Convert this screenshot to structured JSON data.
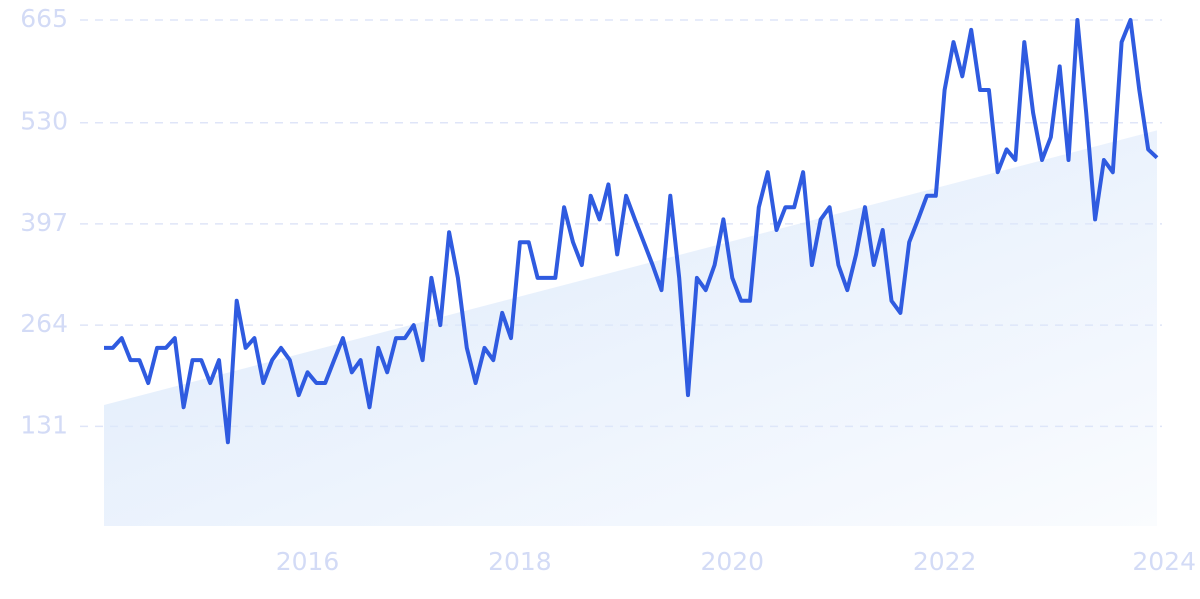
{
  "chart_data": {
    "type": "line",
    "categories": [
      null,
      null,
      null,
      null,
      null,
      null,
      null,
      null,
      null,
      null,
      null,
      null,
      null,
      null,
      null,
      null,
      null,
      null,
      null,
      null,
      null,
      null,
      null,
      "2016",
      null,
      null,
      null,
      null,
      null,
      null,
      null,
      null,
      null,
      null,
      null,
      null,
      null,
      null,
      null,
      null,
      null,
      null,
      null,
      null,
      null,
      null,
      null,
      "2018",
      null,
      null,
      null,
      null,
      null,
      null,
      null,
      null,
      null,
      null,
      null,
      null,
      null,
      null,
      null,
      null,
      null,
      null,
      null,
      null,
      null,
      null,
      null,
      "2020",
      null,
      null,
      null,
      null,
      null,
      null,
      null,
      null,
      null,
      null,
      null,
      null,
      null,
      null,
      null,
      null,
      null,
      null,
      null,
      null,
      null,
      null,
      null,
      "2022",
      null,
      null,
      null,
      null,
      null,
      null,
      null,
      null,
      null,
      null,
      null,
      null,
      null,
      null,
      null,
      null,
      null,
      null,
      null,
      null,
      null,
      null,
      null,
      "2024"
    ],
    "series": [
      {
        "color": "#2f5be0",
        "values": [
          234,
          234,
          247,
          218,
          218,
          188,
          234,
          234,
          247,
          156,
          218,
          218,
          188,
          218,
          110,
          296,
          234,
          247,
          188,
          218,
          234,
          218,
          172,
          202,
          188,
          188,
          218,
          247,
          202,
          218,
          156,
          234,
          202,
          247,
          247,
          264,
          218,
          326,
          264,
          386,
          326,
          234,
          188,
          234,
          218,
          280,
          247,
          373,
          373,
          326,
          326,
          326,
          419,
          373,
          343,
          434,
          403,
          449,
          357,
          434,
          403,
          373,
          343,
          310,
          434,
          326,
          172,
          326,
          310,
          343,
          403,
          326,
          296,
          296,
          419,
          465,
          389,
          419,
          419,
          465,
          343,
          403,
          419,
          343,
          310,
          357,
          419,
          343,
          389,
          296,
          280,
          373,
          403,
          434,
          434,
          573,
          636,
          591,
          652,
          573,
          573,
          465,
          495,
          481,
          636,
          543,
          481,
          511,
          604,
          481,
          665,
          543,
          403,
          481,
          465,
          636,
          665,
          573,
          495,
          484
        ]
      }
    ],
    "trend": {
      "start": 159,
      "end": 520,
      "color": "#dce9fb"
    },
    "ylim": [
      0,
      665
    ],
    "yticks": [
      131,
      264,
      397,
      530,
      665
    ],
    "grid": true
  }
}
